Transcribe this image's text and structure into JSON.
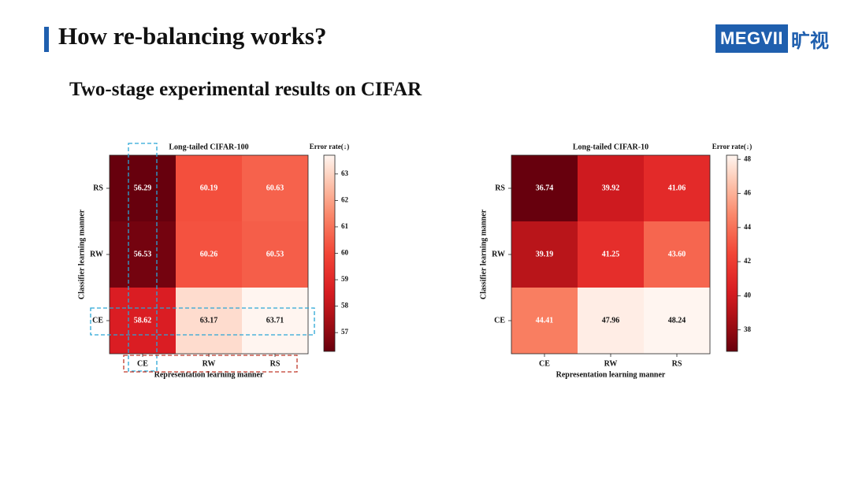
{
  "header": {
    "title": "How re-balancing works?",
    "subtitle": "Two-stage experimental results on CIFAR",
    "logo_text": "MEGVII",
    "logo_cn": "旷视"
  },
  "colors": {
    "accent": "#1f5fae",
    "highlight_cyan": "#2aa6d6",
    "highlight_red": "#c0392b"
  },
  "chart_data": [
    {
      "type": "heatmap",
      "title": "Long-tailed CIFAR-100",
      "xlabel": "Representation learning manner",
      "ylabel": "Classifier learning manner",
      "x_categories": [
        "CE",
        "RW",
        "RS"
      ],
      "y_categories": [
        "RS",
        "RW",
        "CE"
      ],
      "values": [
        [
          56.29,
          60.19,
          60.63
        ],
        [
          56.53,
          60.26,
          60.53
        ],
        [
          58.62,
          63.17,
          63.71
        ]
      ],
      "colorbar": {
        "label": "Error rate(↓)",
        "ticks": [
          57,
          58,
          59,
          60,
          61,
          62,
          63
        ],
        "range": [
          56.29,
          63.71
        ]
      },
      "colormap": "Reds",
      "highlights": [
        "CE column (dashed cyan)",
        "CE row (dashed cyan)",
        "x-axis tick labels (dashed red)"
      ]
    },
    {
      "type": "heatmap",
      "title": "Long-tailed CIFAR-10",
      "xlabel": "Representation learning manner",
      "ylabel": "Classifier learning manner",
      "x_categories": [
        "CE",
        "RW",
        "RS"
      ],
      "y_categories": [
        "RS",
        "RW",
        "CE"
      ],
      "values": [
        [
          36.74,
          39.92,
          41.06
        ],
        [
          39.19,
          41.25,
          43.6
        ],
        [
          44.41,
          47.96,
          48.24
        ]
      ],
      "value_labels": [
        [
          "36.74",
          "39.92",
          "41.06"
        ],
        [
          "39.19",
          "41.25",
          "43.60"
        ],
        [
          "44.41",
          "47.96",
          "48.24"
        ]
      ],
      "colorbar": {
        "label": "Error rate(↓)",
        "ticks": [
          38,
          40,
          42,
          44,
          46,
          48
        ],
        "range": [
          36.74,
          48.24
        ]
      },
      "colormap": "Reds"
    }
  ]
}
